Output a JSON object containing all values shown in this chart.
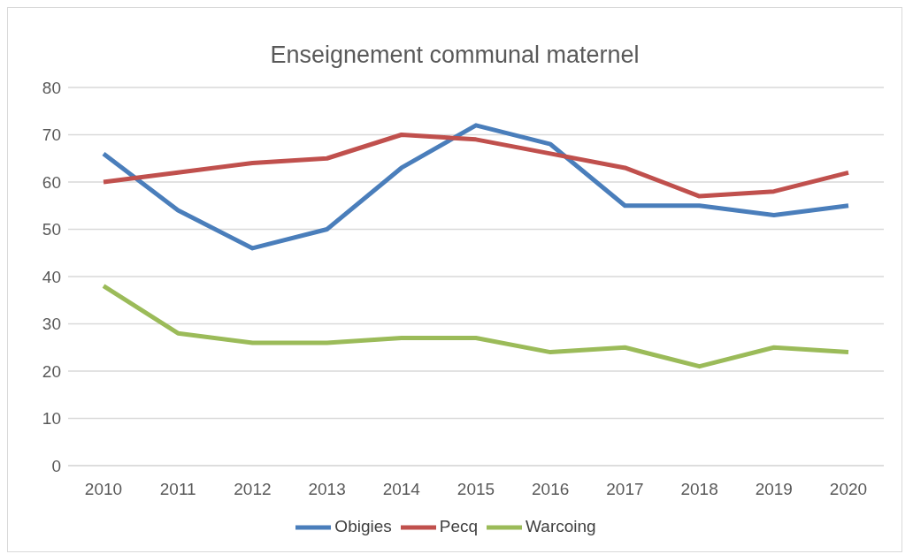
{
  "chart_data": {
    "type": "line",
    "title": "Enseignement communal maternel",
    "categories": [
      "2010",
      "2011",
      "2012",
      "2013",
      "2014",
      "2015",
      "2016",
      "2017",
      "2018",
      "2019",
      "2020"
    ],
    "series": [
      {
        "name": "Obigies",
        "color": "#4a7ebb",
        "values": [
          66,
          54,
          46,
          50,
          63,
          72,
          68,
          55,
          55,
          53,
          55
        ]
      },
      {
        "name": "Pecq",
        "color": "#c0504d",
        "values": [
          60,
          62,
          64,
          65,
          70,
          69,
          66,
          63,
          57,
          58,
          62
        ]
      },
      {
        "name": "Warcoing",
        "color": "#9bbb59",
        "values": [
          38,
          28,
          26,
          26,
          27,
          27,
          24,
          25,
          21,
          25,
          24
        ]
      }
    ],
    "ylim": [
      0,
      80
    ],
    "yticks": [
      0,
      10,
      20,
      30,
      40,
      50,
      60,
      70,
      80
    ],
    "grid": "y",
    "legend": "bottom",
    "marker": "none",
    "line_style": "solid"
  }
}
